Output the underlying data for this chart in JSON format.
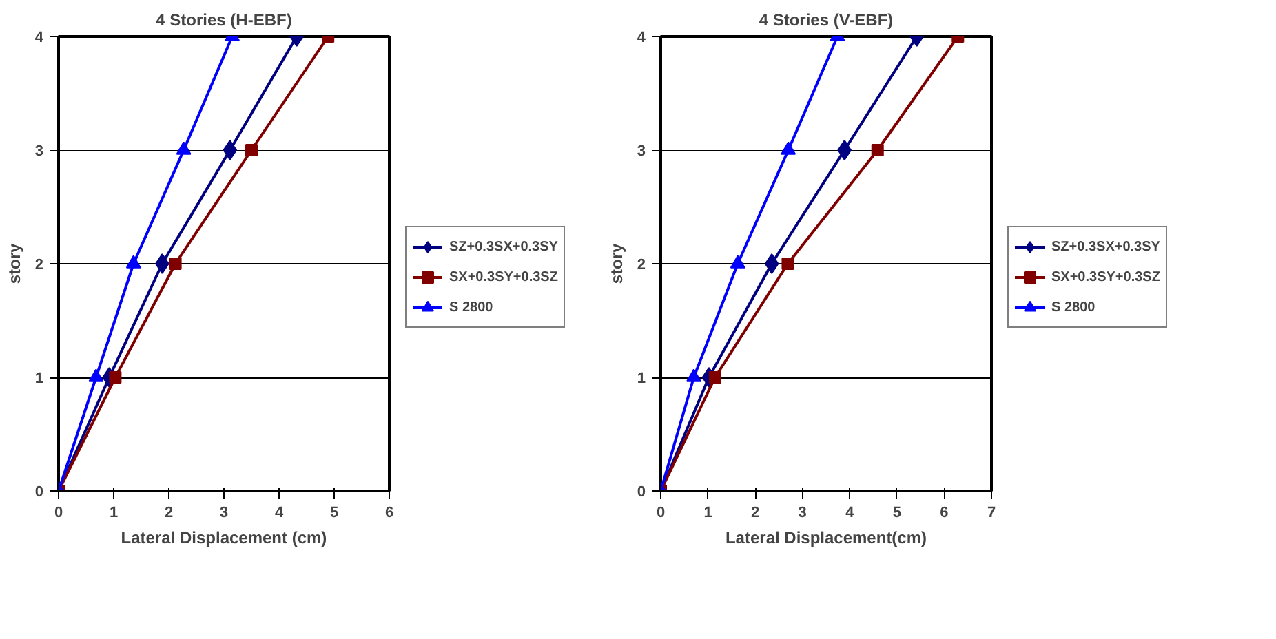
{
  "chart_data": [
    {
      "type": "line",
      "title": "4 Stories (H-EBF)",
      "xlabel": "Lateral Displacement (cm)",
      "ylabel": "story",
      "xlim": [
        0,
        6
      ],
      "xticks": [
        0,
        1,
        2,
        3,
        4,
        5,
        6
      ],
      "ylim": [
        0,
        4
      ],
      "yticks": [
        0,
        1,
        2,
        3,
        4
      ],
      "grid": "y",
      "legend": "right",
      "line_style": "solid",
      "series": [
        {
          "name": "SZ+0.3SX+0.3SY",
          "color": "#000080",
          "marker": "diamond",
          "x": [
            0,
            0.92,
            1.88,
            3.11,
            4.32
          ],
          "values": [
            0,
            1,
            2,
            3,
            4
          ]
        },
        {
          "name": "SX+0.3SY+0.3SZ",
          "color": "#800000",
          "marker": "square",
          "x": [
            0,
            1.03,
            2.12,
            3.5,
            4.89
          ],
          "values": [
            0,
            1,
            2,
            3,
            4
          ]
        },
        {
          "name": "S 2800",
          "color": "#0000ff",
          "marker": "triangle",
          "x": [
            0,
            0.68,
            1.36,
            2.27,
            3.15
          ],
          "values": [
            0,
            1,
            2,
            3,
            4
          ]
        }
      ]
    },
    {
      "type": "line",
      "title": "4 Stories (V-EBF)",
      "xlabel": "Lateral Displacement(cm)",
      "ylabel": "story",
      "xlim": [
        0,
        7
      ],
      "xticks": [
        0,
        1,
        2,
        3,
        4,
        5,
        6,
        7
      ],
      "ylim": [
        0,
        4
      ],
      "yticks": [
        0,
        1,
        2,
        3,
        4
      ],
      "grid": "y",
      "legend": "right",
      "line_style": "solid",
      "series": [
        {
          "name": "SZ+0.3SX+0.3SY",
          "color": "#000080",
          "marker": "diamond",
          "x": [
            0,
            1.02,
            2.35,
            3.89,
            5.42
          ],
          "values": [
            0,
            1,
            2,
            3,
            4
          ]
        },
        {
          "name": "SX+0.3SY+0.3SZ",
          "color": "#800000",
          "marker": "square",
          "x": [
            0,
            1.15,
            2.69,
            4.59,
            6.29
          ],
          "values": [
            0,
            1,
            2,
            3,
            4
          ]
        },
        {
          "name": "S 2800",
          "color": "#0000ff",
          "marker": "triangle",
          "x": [
            0,
            0.7,
            1.63,
            2.7,
            3.74
          ],
          "values": [
            0,
            1,
            2,
            3,
            4
          ]
        }
      ]
    }
  ]
}
